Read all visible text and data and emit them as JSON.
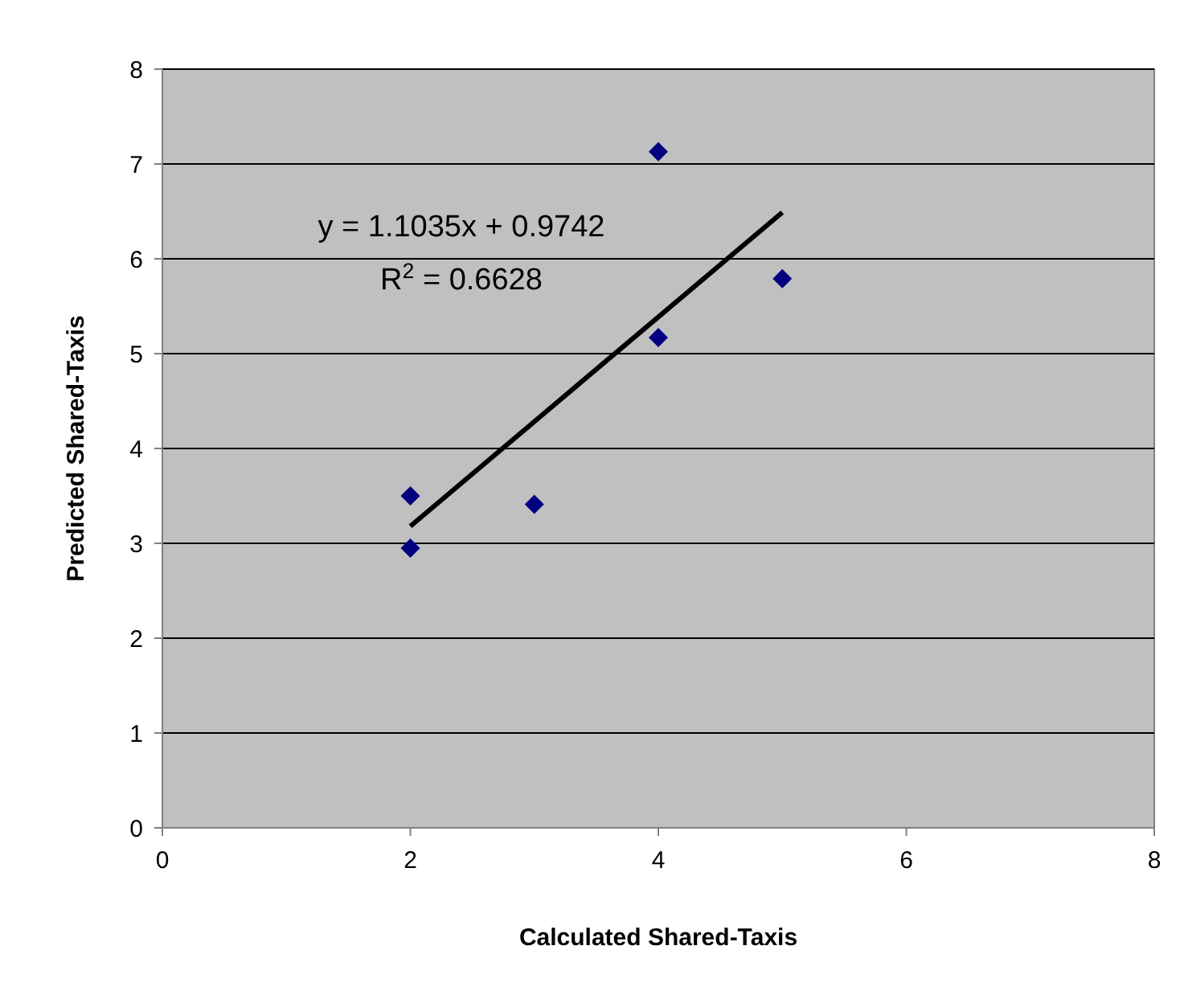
{
  "chart_data": {
    "type": "scatter",
    "xlabel": "Calculated Shared-Taxis",
    "ylabel": "Predicted Shared-Taxis",
    "xlim": [
      0,
      8
    ],
    "xticks": [
      0,
      2,
      4,
      6,
      8
    ],
    "ylim": [
      0,
      8
    ],
    "yticks": [
      0,
      1,
      2,
      3,
      4,
      5,
      6,
      7,
      8
    ],
    "grid": "y",
    "series": [
      {
        "color": "#000080",
        "marker": "diamond",
        "x": [
          2,
          2,
          3,
          4,
          4,
          5
        ],
        "values": [
          3.5,
          2.95,
          3.41,
          5.17,
          7.13,
          5.79
        ]
      },
      {
        "type": "line",
        "color": "#000000",
        "marker": "none",
        "line_style": "solid",
        "x": [
          2,
          5
        ],
        "values": [
          3.18,
          6.49
        ]
      }
    ],
    "annotations": [
      "y = 1.1035x + 0.9742",
      "R$^{2}$ = 0.6628"
    ]
  }
}
